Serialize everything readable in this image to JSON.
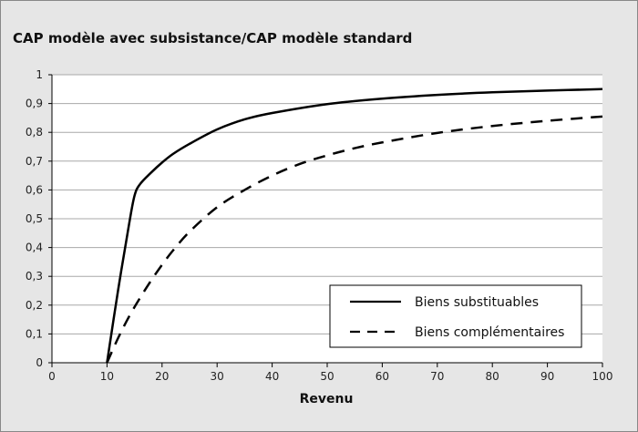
{
  "chart_data": {
    "type": "line",
    "title": "CAP modèle avec subsistance/CAP modèle standard",
    "xlabel": "Revenu",
    "ylabel": "",
    "xlim": [
      0,
      100
    ],
    "ylim": [
      0,
      1
    ],
    "x_ticks": [
      0,
      10,
      20,
      30,
      40,
      50,
      60,
      70,
      80,
      90,
      100
    ],
    "y_ticks": [
      0,
      0.1,
      0.2,
      0.3,
      0.4,
      0.5,
      0.6,
      0.7,
      0.8,
      0.9,
      1
    ],
    "x_tick_labels": [
      "0",
      "10",
      "20",
      "30",
      "40",
      "50",
      "60",
      "70",
      "80",
      "90",
      "100"
    ],
    "y_tick_labels": [
      "0",
      "0,1",
      "0,2",
      "0,3",
      "0,4",
      "0,5",
      "0,6",
      "0,7",
      "0,8",
      "0,9",
      "1"
    ],
    "grid": "horizontal",
    "legend_position": "bottom-right",
    "series": [
      {
        "name": "Biens substituables",
        "style": "solid",
        "color": "#000000",
        "x": [
          10,
          12,
          14,
          15,
          16,
          18,
          20,
          22,
          25,
          30,
          35,
          40,
          50,
          60,
          70,
          80,
          90,
          100
        ],
        "y": [
          0,
          0.25,
          0.48,
          0.58,
          0.62,
          0.66,
          0.695,
          0.725,
          0.76,
          0.81,
          0.845,
          0.867,
          0.898,
          0.917,
          0.93,
          0.939,
          0.945,
          0.95
        ]
      },
      {
        "name": "Biens complémentaires",
        "style": "dashed",
        "color": "#000000",
        "x": [
          10,
          12,
          14,
          16,
          18,
          20,
          22,
          25,
          30,
          35,
          40,
          45,
          50,
          55,
          60,
          70,
          80,
          90,
          100
        ],
        "y": [
          0,
          0.085,
          0.16,
          0.225,
          0.285,
          0.34,
          0.39,
          0.455,
          0.54,
          0.6,
          0.65,
          0.69,
          0.72,
          0.745,
          0.765,
          0.798,
          0.822,
          0.84,
          0.855
        ]
      }
    ]
  }
}
